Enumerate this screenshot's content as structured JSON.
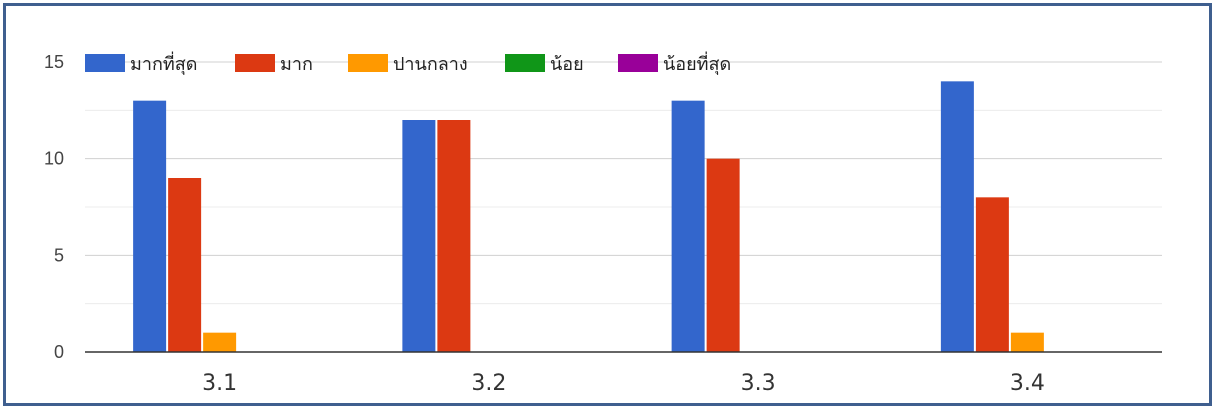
{
  "chart_data": {
    "type": "bar",
    "categories": [
      "3.1",
      "3.2",
      "3.3",
      "3.4"
    ],
    "series": [
      {
        "name": "มากที่สุด",
        "color": "#3366cc",
        "values": [
          13,
          12,
          13,
          14
        ]
      },
      {
        "name": "มาก",
        "color": "#dc3912",
        "values": [
          9,
          12,
          10,
          8
        ]
      },
      {
        "name": "ปานกลาง",
        "color": "#ff9900",
        "values": [
          1,
          0,
          0,
          1
        ]
      },
      {
        "name": "น้อย",
        "color": "#109618",
        "values": [
          0,
          0,
          0,
          0
        ]
      },
      {
        "name": "น้อยที่สุด",
        "color": "#990099",
        "values": [
          0,
          0,
          0,
          0
        ]
      }
    ],
    "yticks": [
      0,
      5,
      10,
      15
    ],
    "ylim": [
      0,
      15
    ],
    "grid": true,
    "legend_position": "top-left"
  }
}
